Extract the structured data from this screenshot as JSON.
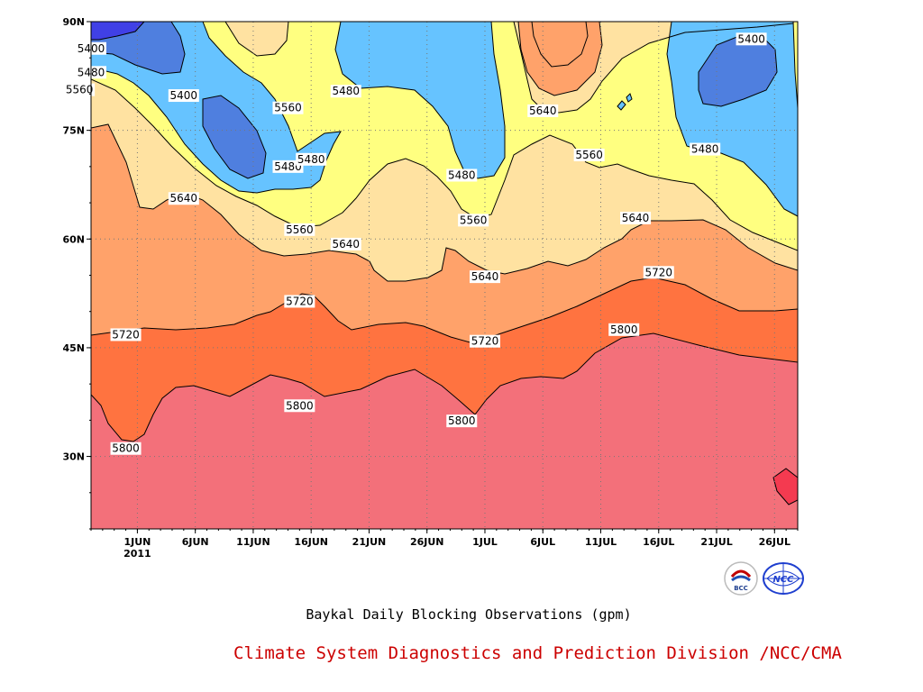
{
  "caption": "Baykal Daily Blocking Observations (gpm)",
  "credit": "Climate System Diagnostics and Prediction Division /NCC/CMA",
  "credit_color": "#cc0000",
  "logos": [
    "BCC",
    "NCC"
  ],
  "chart_data": {
    "type": "contour",
    "title": "",
    "xlabel": "",
    "ylabel": "",
    "xlim": [
      "2011-05-28",
      "2011-07-28"
    ],
    "ylim": [
      20,
      90
    ],
    "x_ticks": [
      "1JUN",
      "6JUN",
      "11JUN",
      "16JUN",
      "21JUN",
      "26JUN",
      "1JUL",
      "6JUL",
      "11JUL",
      "16JUL",
      "21JUL",
      "26JUL"
    ],
    "x_tick_dates": [
      "2011-06-01",
      "2011-06-06",
      "2011-06-11",
      "2011-06-16",
      "2011-06-21",
      "2011-06-26",
      "2011-07-01",
      "2011-07-06",
      "2011-07-11",
      "2011-07-16",
      "2011-07-21",
      "2011-07-26"
    ],
    "x_year_label": "2011",
    "y_ticks": [
      "30N",
      "45N",
      "60N",
      "75N",
      "90N"
    ],
    "y_tick_values": [
      30,
      45,
      60,
      75,
      90
    ],
    "grid": true,
    "contour_levels": [
      5400,
      5480,
      5560,
      5640,
      5720,
      5800
    ],
    "fill_colors": [
      "#4040e6",
      "#4f7fdf",
      "#66c3ff",
      "#ffff80",
      "#ffe2a1",
      "#ffa26a",
      "#ff7340",
      "#f3707a",
      "#f43a50"
    ],
    "contour_labels": [
      {
        "text": "5400",
        "date": "2011-05-28",
        "lat": 86.3
      },
      {
        "text": "5480",
        "date": "2011-05-28",
        "lat": 83.0
      },
      {
        "text": "5560",
        "date": "2011-05-27",
        "lat": 80.6
      },
      {
        "text": "5400",
        "date": "2011-06-05",
        "lat": 79.8
      },
      {
        "text": "5560",
        "date": "2011-06-14",
        "lat": 78.1
      },
      {
        "text": "5480",
        "date": "2011-06-19",
        "lat": 80.4
      },
      {
        "text": "5480",
        "date": "2011-06-14",
        "lat": 70.0
      },
      {
        "text": "5480",
        "date": "2011-06-16",
        "lat": 71.0
      },
      {
        "text": "5640",
        "date": "2011-06-05",
        "lat": 65.6
      },
      {
        "text": "5560",
        "date": "2011-06-15",
        "lat": 61.3
      },
      {
        "text": "5640",
        "date": "2011-06-19",
        "lat": 59.3
      },
      {
        "text": "5720",
        "date": "2011-06-15",
        "lat": 51.4
      },
      {
        "text": "5720",
        "date": "2011-05-31",
        "lat": 46.8
      },
      {
        "text": "5800",
        "date": "2011-06-15",
        "lat": 37.0
      },
      {
        "text": "5800",
        "date": "2011-05-31",
        "lat": 31.1
      },
      {
        "text": "5800",
        "date": "2011-06-29",
        "lat": 34.9
      },
      {
        "text": "5480",
        "date": "2011-06-29",
        "lat": 68.8
      },
      {
        "text": "5560",
        "date": "2011-06-30",
        "lat": 62.6
      },
      {
        "text": "5640",
        "date": "2011-07-01",
        "lat": 54.8
      },
      {
        "text": "5720",
        "date": "2011-07-01",
        "lat": 45.9
      },
      {
        "text": "5640",
        "date": "2011-07-06",
        "lat": 77.7
      },
      {
        "text": "5560",
        "date": "2011-07-10",
        "lat": 71.6
      },
      {
        "text": "5640",
        "date": "2011-07-14",
        "lat": 62.9
      },
      {
        "text": "5720",
        "date": "2011-07-16",
        "lat": 55.4
      },
      {
        "text": "5800",
        "date": "2011-07-13",
        "lat": 47.5
      },
      {
        "text": "5480",
        "date": "2011-07-20",
        "lat": 72.4
      },
      {
        "text": "5400",
        "date": "2011-07-24",
        "lat": 87.6
      }
    ]
  }
}
